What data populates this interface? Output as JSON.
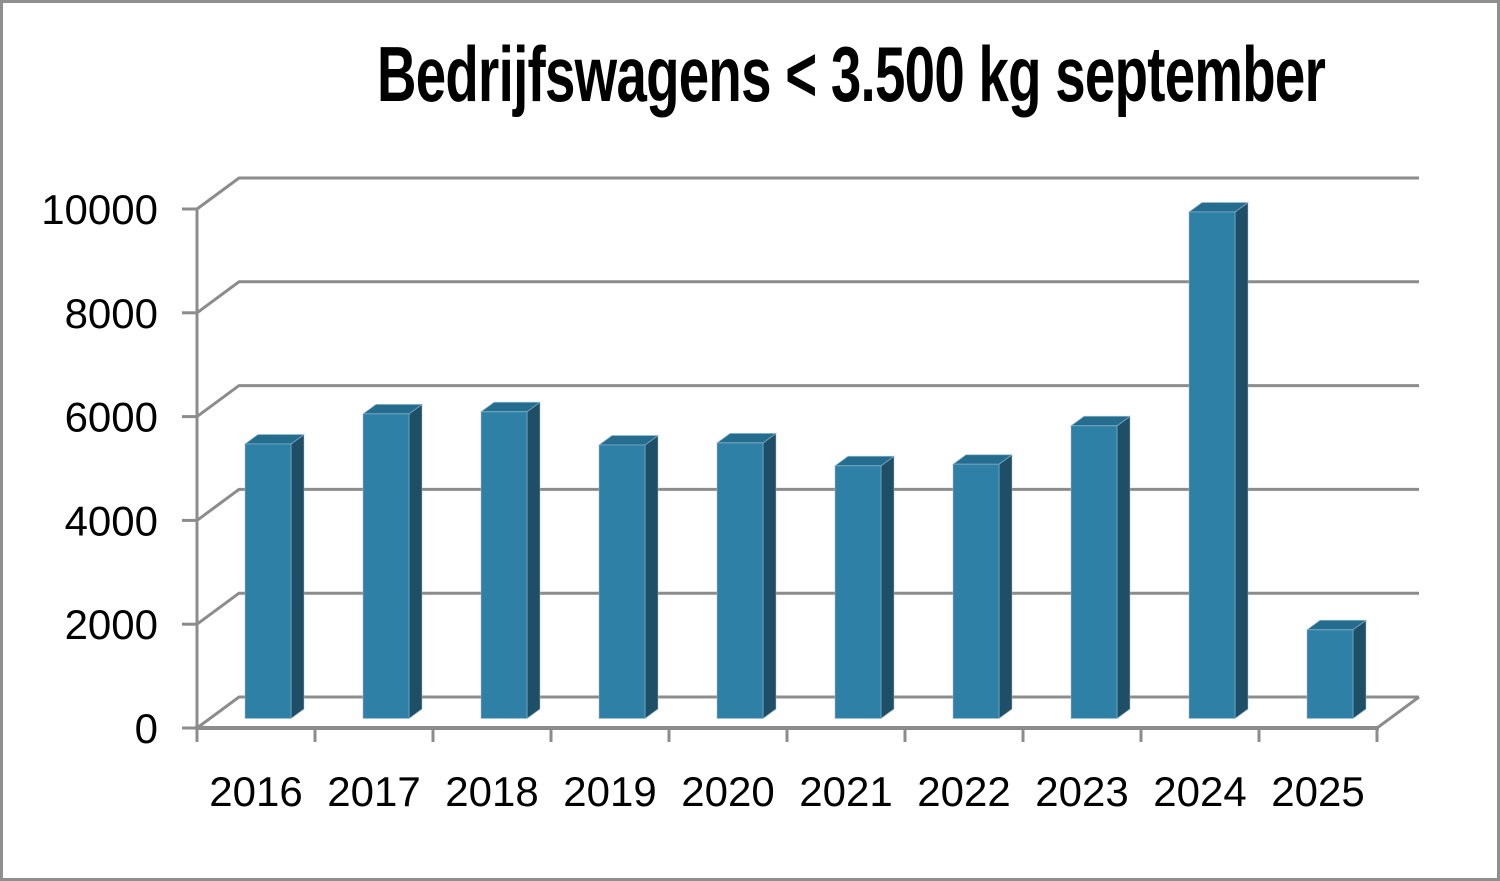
{
  "chart_data": {
    "type": "bar",
    "variant": "3d-column",
    "title": "Bedrijfswagens < 3.500 kg september",
    "categories": [
      "2016",
      "2017",
      "2018",
      "2019",
      "2020",
      "2021",
      "2022",
      "2023",
      "2024",
      "2025"
    ],
    "values": [
      5290,
      5870,
      5910,
      5270,
      5310,
      4870,
      4900,
      5640,
      9760,
      1710
    ],
    "series_name": "Bedrijfswagens < 3.500 kg september",
    "xlabel": "",
    "ylabel": "",
    "ylim": [
      0,
      10000
    ],
    "ytick_step": 2000,
    "ytick_labels": [
      "0",
      "2000",
      "4000",
      "6000",
      "8000",
      "10000"
    ],
    "grid": true,
    "legend": false,
    "colors": {
      "bar_front": "#2F80A7",
      "bar_side": "#1E4F66",
      "bar_top": "#256D8E",
      "bar_edge": "#9DC0D2",
      "gridline": "#8C8C8C",
      "axis": "#8C8C8C",
      "text": "#000000",
      "background": "#FFFFFF",
      "frame_border": "#8F8F8F"
    }
  }
}
